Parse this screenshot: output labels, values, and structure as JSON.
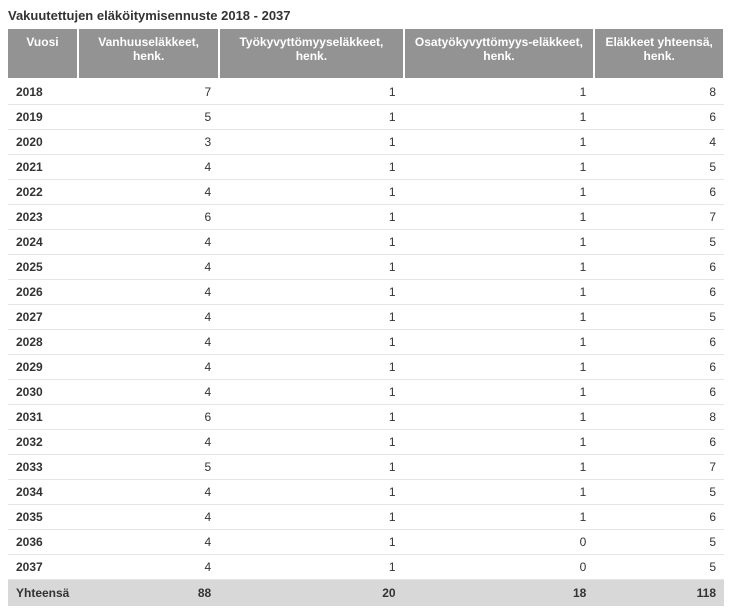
{
  "title": "Vakuutettujen eläköitymisennuste 2018 - 2037",
  "table": {
    "type": "table",
    "background_color": "#ffffff",
    "header_bg": "#939393",
    "header_text_color": "#ffffff",
    "row_border_color": "#e5e5e5",
    "footer_bg": "#d8d8d8",
    "font_size": 12,
    "title_fontsize": 13,
    "columns": [
      "Vuosi",
      "Vanhuuseläkkeet, henk.",
      "Työkyvyttömyyseläkkeet, henk.",
      "Osatyökyvyttömyys-eläkkeet, henk.",
      "Eläkkeet yhteensä, henk."
    ],
    "rows": [
      [
        "2018",
        7,
        1,
        1,
        8
      ],
      [
        "2019",
        5,
        1,
        1,
        6
      ],
      [
        "2020",
        3,
        1,
        1,
        4
      ],
      [
        "2021",
        4,
        1,
        1,
        5
      ],
      [
        "2022",
        4,
        1,
        1,
        6
      ],
      [
        "2023",
        6,
        1,
        1,
        7
      ],
      [
        "2024",
        4,
        1,
        1,
        5
      ],
      [
        "2025",
        4,
        1,
        1,
        6
      ],
      [
        "2026",
        4,
        1,
        1,
        6
      ],
      [
        "2027",
        4,
        1,
        1,
        5
      ],
      [
        "2028",
        4,
        1,
        1,
        6
      ],
      [
        "2029",
        4,
        1,
        1,
        6
      ],
      [
        "2030",
        4,
        1,
        1,
        6
      ],
      [
        "2031",
        6,
        1,
        1,
        8
      ],
      [
        "2032",
        4,
        1,
        1,
        6
      ],
      [
        "2033",
        5,
        1,
        1,
        7
      ],
      [
        "2034",
        4,
        1,
        1,
        5
      ],
      [
        "2035",
        4,
        1,
        1,
        6
      ],
      [
        "2036",
        4,
        1,
        0,
        5
      ],
      [
        "2037",
        4,
        1,
        0,
        5
      ]
    ],
    "footer": [
      "Yhteensä",
      88,
      20,
      18,
      118
    ]
  }
}
